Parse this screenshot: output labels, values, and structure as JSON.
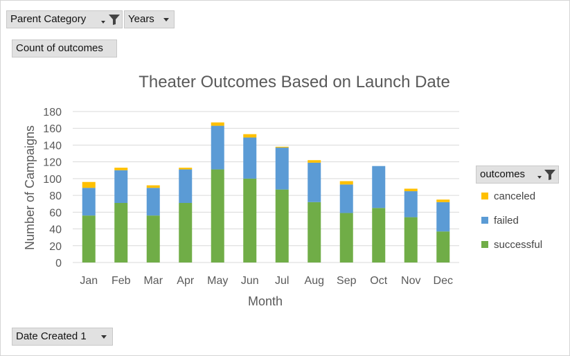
{
  "filters": {
    "parent_category_label": "Parent Category",
    "years_label": "Years",
    "values_label": "Count of outcomes",
    "axis_field_label": "Date Created 1",
    "legend_field_label": "outcomes"
  },
  "icons": {
    "filter": "funnel-icon",
    "dropdown": "chevron-down-icon"
  },
  "colors": {
    "successful": "#70ad47",
    "failed": "#5b9bd5",
    "canceled": "#ffc000",
    "gridline": "#d9d9d9",
    "axis_text": "#595959"
  },
  "chart_data": {
    "type": "bar",
    "stacked": true,
    "title": "Theater Outcomes Based on Launch Date",
    "xlabel": "Month",
    "ylabel": "Number of Campaigns",
    "categories": [
      "Jan",
      "Feb",
      "Mar",
      "Apr",
      "May",
      "Jun",
      "Jul",
      "Aug",
      "Sep",
      "Oct",
      "Nov",
      "Dec"
    ],
    "series": [
      {
        "name": "successful",
        "values": [
          56,
          71,
          56,
          71,
          111,
          100,
          87,
          72,
          59,
          65,
          54,
          37
        ]
      },
      {
        "name": "failed",
        "values": [
          33,
          39,
          33,
          40,
          52,
          49,
          50,
          47,
          34,
          50,
          31,
          35
        ]
      },
      {
        "name": "canceled",
        "values": [
          7,
          3,
          3,
          2,
          4,
          4,
          1,
          3,
          4,
          0,
          3,
          3
        ]
      }
    ],
    "ylim": [
      0,
      180
    ],
    "yticks": [
      0,
      20,
      40,
      60,
      80,
      100,
      120,
      140,
      160,
      180
    ],
    "grid": true,
    "legend_position": "right",
    "legend_order": [
      "canceled",
      "failed",
      "successful"
    ]
  }
}
